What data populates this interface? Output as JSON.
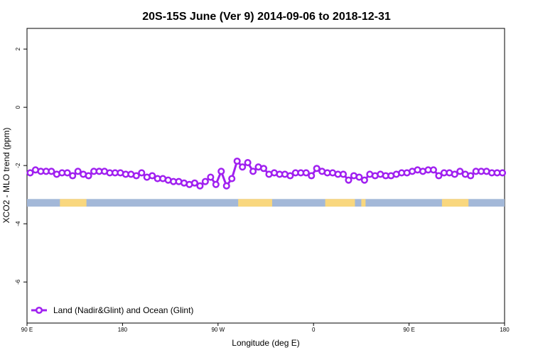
{
  "chart_data": {
    "type": "line",
    "title": "20S-15S June (Ver 9)   2014-09-06 to 2018-12-31",
    "x_label": "Longitude (deg E)",
    "y_label": "XCO2 - MLO trend (ppm)",
    "xlim": [
      90,
      540
    ],
    "xticks": [
      {
        "value": 90,
        "label": "90 E"
      },
      {
        "value": 180,
        "label": "180"
      },
      {
        "value": 270,
        "label": "90 W"
      },
      {
        "value": 360,
        "label": "0"
      },
      {
        "value": 450,
        "label": "90 E"
      },
      {
        "value": 540,
        "label": "180"
      }
    ],
    "ylim": [
      -7.41,
      2.71
    ],
    "yticks": [
      -6,
      -4,
      -2,
      0,
      2
    ],
    "legend": "bottom-left",
    "x": [
      93,
      98,
      103,
      108,
      113,
      118,
      123,
      128,
      133,
      138,
      143,
      148,
      153,
      158,
      163,
      168,
      173,
      178,
      183,
      188,
      193,
      198,
      203,
      208,
      213,
      218,
      223,
      228,
      233,
      238,
      243,
      248,
      253,
      258,
      263,
      268,
      273,
      278,
      283,
      288,
      293,
      298,
      303,
      308,
      313,
      318,
      323,
      328,
      333,
      338,
      343,
      348,
      353,
      358,
      363,
      368,
      373,
      378,
      383,
      388,
      393,
      398,
      403,
      408,
      413,
      418,
      423,
      428,
      433,
      438,
      443,
      448,
      453,
      458,
      463,
      468,
      473,
      478,
      483,
      488,
      493,
      498,
      503,
      508,
      513,
      518,
      523,
      528,
      533,
      538
    ],
    "series": [
      {
        "name": "Land (Nadir&Glint) and Ocean (Glint)",
        "color": "#a020f0",
        "values": [
          -2.25,
          -2.15,
          -2.2,
          -2.2,
          -2.2,
          -2.3,
          -2.25,
          -2.25,
          -2.35,
          -2.2,
          -2.3,
          -2.35,
          -2.2,
          -2.2,
          -2.2,
          -2.25,
          -2.25,
          -2.25,
          -2.3,
          -2.3,
          -2.35,
          -2.25,
          -2.4,
          -2.35,
          -2.45,
          -2.45,
          -2.5,
          -2.55,
          -2.55,
          -2.6,
          -2.65,
          -2.6,
          -2.7,
          -2.55,
          -2.4,
          -2.65,
          -2.2,
          -2.7,
          -2.45,
          -1.85,
          -2.05,
          -1.9,
          -2.2,
          -2.05,
          -2.1,
          -2.3,
          -2.25,
          -2.3,
          -2.3,
          -2.35,
          -2.25,
          -2.25,
          -2.25,
          -2.35,
          -2.1,
          -2.2,
          -2.25,
          -2.25,
          -2.3,
          -2.3,
          -2.5,
          -2.35,
          -2.4,
          -2.5,
          -2.3,
          -2.35,
          -2.3,
          -2.35,
          -2.35,
          -2.3,
          -2.25,
          -2.25,
          -2.2,
          -2.15,
          -2.2,
          -2.15,
          -2.15,
          -2.35,
          -2.25,
          -2.25,
          -2.3,
          -2.2,
          -2.3,
          -2.35,
          -2.2,
          -2.2,
          -2.2,
          -2.25,
          -2.25,
          -2.25
        ]
      }
    ],
    "surface_band": {
      "ylim": [
        -3.41,
        -3.15
      ],
      "ocean_color": "#a3b8d8",
      "land_color": "#f9d77e",
      "land": [
        [
          121,
          146
        ],
        [
          289,
          321
        ],
        [
          371,
          399
        ],
        [
          405,
          409
        ],
        [
          481,
          506
        ]
      ]
    }
  }
}
